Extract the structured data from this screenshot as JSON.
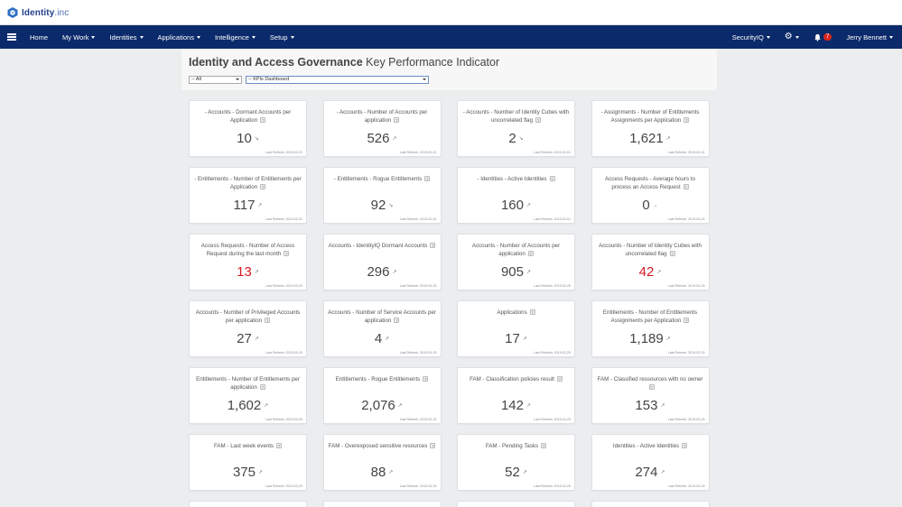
{
  "brand": {
    "name_bold": "Identity",
    "name_rest": ".inc"
  },
  "nav": {
    "left": [
      {
        "label": "Home",
        "dropdown": false
      },
      {
        "label": "My Work",
        "dropdown": true
      },
      {
        "label": "Identities",
        "dropdown": true
      },
      {
        "label": "Applications",
        "dropdown": true
      },
      {
        "label": "Intelligence",
        "dropdown": true
      },
      {
        "label": "Setup",
        "dropdown": true
      }
    ],
    "product_label": "SecurityIQ",
    "notification_count": "7",
    "user_name": "Jerry Bennett",
    "icons": {
      "menu": "hamburger-icon",
      "settings": "gear-icon",
      "notifications": "bell-icon"
    }
  },
  "header": {
    "title_bold": "Identity and Access Governance",
    "title_rest": "Key Performance Indicator",
    "filter_scope": "-- All",
    "filter_dashboard": "-- KPIs Dashboard"
  },
  "colors": {
    "navbar": "#0b2a6b",
    "alert_value": "#d71920",
    "badge": "#d9251d"
  },
  "help_glyph": "?",
  "refresh_prefix": "Last Refresh:",
  "kpis": [
    {
      "title": "- Accounts - Dormant Accounts per Application",
      "value": "10",
      "trend": "↘",
      "refresh": "2019-02-01",
      "alert": false
    },
    {
      "title": "- Accounts - Number of Accounts per application",
      "value": "526",
      "trend": "↗",
      "refresh": "2019-02-01",
      "alert": false
    },
    {
      "title": "- Accounts - Number of Identity Cubes with uncorrelated flag",
      "value": "2",
      "trend": "↘",
      "refresh": "2019-02-01",
      "alert": false
    },
    {
      "title": "- Assignments - Number of Entitlements Assignments per Application",
      "value": "1,621",
      "trend": "↗",
      "refresh": "2019-02-01",
      "alert": false
    },
    {
      "title": "- Entitlements - Number of Entitlements per Application",
      "value": "117",
      "trend": "↗",
      "refresh": "2019-02-01",
      "alert": false
    },
    {
      "title": "- Entitlements - Rogue Entitlements",
      "value": "92",
      "trend": "↘",
      "refresh": "2019-02-01",
      "alert": false
    },
    {
      "title": "- Identities - Active Identities",
      "value": "160",
      "trend": "↗",
      "refresh": "2019-02-01",
      "alert": false
    },
    {
      "title": "Access Requests - Average hours to process an Access Request",
      "value": "0",
      "trend": "→",
      "refresh": "2019-03-29",
      "alert": false
    },
    {
      "title": "Access Requests - Number of Access Request during the last month",
      "value": "13",
      "trend": "↗",
      "refresh": "2019-03-29",
      "alert": true
    },
    {
      "title": "Accounts - IdentityIQ Dormant Accounts",
      "value": "296",
      "trend": "↗",
      "refresh": "2019-03-29",
      "alert": false
    },
    {
      "title": "Accounts - Number of Accounts per application",
      "value": "905",
      "trend": "↗",
      "refresh": "2019-03-29",
      "alert": false
    },
    {
      "title": "Accounts - Number of Identity Cubes with uncorrelated flag",
      "value": "42",
      "trend": "↗",
      "refresh": "2019-03-29",
      "alert": true
    },
    {
      "title": "Accounts - Number of Privileged Accounts per application",
      "value": "27",
      "trend": "↗",
      "refresh": "2019-03-29",
      "alert": false
    },
    {
      "title": "Accounts - Number of Service Accounts per application",
      "value": "4",
      "trend": "↗",
      "refresh": "2019-03-29",
      "alert": false
    },
    {
      "title": "Applications",
      "value": "17",
      "trend": "↗",
      "refresh": "2019-03-29",
      "alert": false
    },
    {
      "title": "Entitlements - Number of Entitlements Assignments per Application",
      "value": "1,189",
      "trend": "↗",
      "refresh": "2019-03-29",
      "alert": false
    },
    {
      "title": "Entitlements - Number of Entitlements per application",
      "value": "1,602",
      "trend": "↗",
      "refresh": "2019-03-29",
      "alert": false
    },
    {
      "title": "Entitlements - Rogue Entitlements",
      "value": "2,076",
      "trend": "↗",
      "refresh": "2019-03-29",
      "alert": false
    },
    {
      "title": "FAM - Classification policies result",
      "value": "142",
      "trend": "↗",
      "refresh": "2019-03-29",
      "alert": false
    },
    {
      "title": "FAM - Classified ressources with no owner",
      "value": "153",
      "trend": "↗",
      "refresh": "2019-03-29",
      "alert": false
    },
    {
      "title": "FAM - Last week events",
      "value": "375",
      "trend": "↗",
      "refresh": "2019-03-29",
      "alert": false
    },
    {
      "title": "FAM - Overexposed sensitive resources",
      "value": "88",
      "trend": "↗",
      "refresh": "2019-03-29",
      "alert": false
    },
    {
      "title": "FAM - Pending Tasks",
      "value": "52",
      "trend": "↗",
      "refresh": "2019-03-29",
      "alert": false
    },
    {
      "title": "Identities - Active Identities",
      "value": "274",
      "trend": "↗",
      "refresh": "2019-03-29",
      "alert": false
    }
  ]
}
